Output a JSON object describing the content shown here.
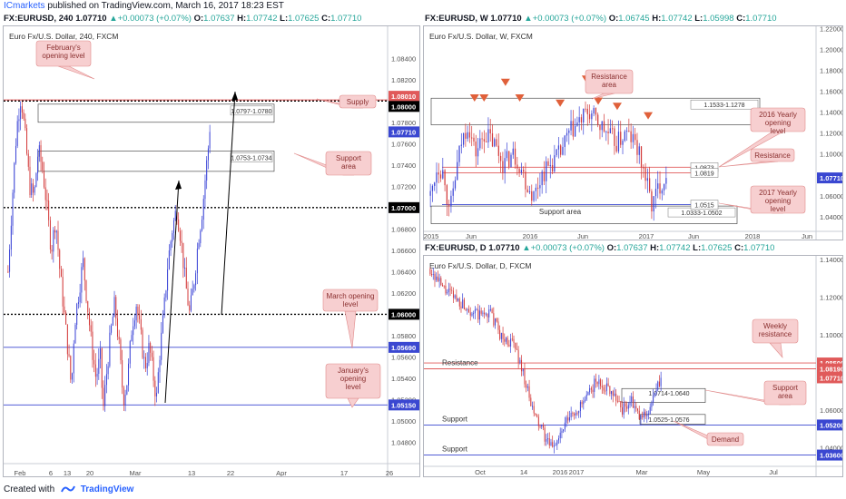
{
  "header": {
    "brand": "ICmarkets",
    "published": " published on TradingView.com, March 16, 2017 18:23 EST"
  },
  "footer": {
    "created_with": "Created with",
    "brand": "TradingView"
  },
  "panels": [
    {
      "id": "h4",
      "symbol": "FX:EURUSD, 240",
      "last": "1.07710",
      "change": "+0.00073 (+0.07%)",
      "open": "1.07637",
      "high": "1.07742",
      "low": "1.07625",
      "close": "1.07710",
      "title": "Euro Fx/U.S. Dollar, 240, FXCM"
    },
    {
      "id": "weekly",
      "symbol": "FX:EURUSD, W",
      "last": "1.07710",
      "change": "+0.00073 (+0.07%)",
      "open": "1.06745",
      "high": "1.07742",
      "low": "1.05998",
      "close": "1.07710",
      "title": "Euro Fx/U.S. Dollar, W, FXCM"
    },
    {
      "id": "daily",
      "symbol": "FX:EURUSD, D",
      "last": "1.07710",
      "change": "+0.00073 (+0.07%)",
      "open": "1.07637",
      "high": "1.07742",
      "low": "1.07625",
      "close": "1.07710",
      "title": "Euro Fx/U.S. Dollar, D, FXCM"
    }
  ],
  "colors": {
    "bull": "#3b44d6",
    "bear": "#d33a3a",
    "level_red": "#e05a5a",
    "level_blue": "#3a47d1",
    "callout": "#f7cfd0",
    "callout_border": "#e08a8a",
    "callout_text": "#8a2f2f",
    "axis_text": "#505050"
  },
  "chart_data": [
    {
      "panel": "h4",
      "type": "candlestick",
      "price_range": [
        1.046,
        1.087
      ],
      "y_tick_labels": [
        "1.04800",
        "1.05000",
        "1.05200",
        "1.05400",
        "1.05600",
        "1.05800",
        "1.06000",
        "1.06200",
        "1.06400",
        "1.06600",
        "1.06800",
        "1.07000",
        "1.07200",
        "1.07400",
        "1.07600",
        "1.07800",
        "1.08000",
        "1.08200",
        "1.08400"
      ],
      "x_tick_labels": [
        "Feb",
        "6",
        "13",
        "20",
        "Mar",
        "13",
        "22",
        "Apr",
        "17",
        "26"
      ],
      "zones": [
        {
          "label": "1.0797-1.0780",
          "high": 1.0797,
          "low": 1.078
        },
        {
          "label": "1.0753-1.0734",
          "high": 1.0753,
          "low": 1.0734
        }
      ],
      "levels": [
        {
          "value": 1.0801,
          "label": "1.08010",
          "color": "#e05a5a",
          "style": "solid"
        },
        {
          "value": 1.08,
          "label": "1.08000",
          "color": "#000000",
          "style": "dotted"
        },
        {
          "value": 1.07,
          "label": "1.07000",
          "color": "#000000",
          "style": "dotted"
        },
        {
          "value": 1.06,
          "label": "1.06000",
          "color": "#000000",
          "style": "dotted"
        },
        {
          "value": 1.0569,
          "label": "1.05690",
          "color": "#3a47d1",
          "style": "solid"
        },
        {
          "value": 1.0515,
          "label": "1.05150",
          "color": "#3a47d1",
          "style": "solid"
        }
      ],
      "last_price": {
        "value": 1.0771,
        "label": "1.07710"
      },
      "annotations": [
        {
          "text": "February's opening level"
        },
        {
          "text": "Supply"
        },
        {
          "text": "Support area"
        },
        {
          "text": "March opening level"
        },
        {
          "text": "January's opening level"
        }
      ],
      "path": [
        [
          0,
          1.064
        ],
        [
          3,
          1.071
        ],
        [
          6,
          1.0775
        ],
        [
          9,
          1.0805
        ],
        [
          12,
          1.0765
        ],
        [
          15,
          1.072
        ],
        [
          18,
          1.071
        ],
        [
          21,
          1.0755
        ],
        [
          24,
          1.0735
        ],
        [
          27,
          1.07
        ],
        [
          30,
          1.066
        ],
        [
          33,
          1.069
        ],
        [
          36,
          1.064
        ],
        [
          39,
          1.06
        ],
        [
          42,
          1.056
        ],
        [
          44,
          1.053
        ],
        [
          46,
          1.059
        ],
        [
          49,
          1.062
        ],
        [
          52,
          1.065
        ],
        [
          55,
          1.061
        ],
        [
          58,
          1.057
        ],
        [
          61,
          1.054
        ],
        [
          64,
          1.056
        ],
        [
          66,
          1.051
        ],
        [
          68,
          1.054
        ],
        [
          71,
          1.058
        ],
        [
          74,
          1.061
        ],
        [
          77,
          1.057
        ],
        [
          80,
          1.052
        ],
        [
          83,
          1.054
        ],
        [
          86,
          1.059
        ],
        [
          89,
          1.061
        ],
        [
          92,
          1.058
        ],
        [
          95,
          1.055
        ],
        [
          98,
          1.057
        ],
        [
          101,
          1.054
        ],
        [
          103,
          1.052
        ],
        [
          105,
          1.056
        ],
        [
          108,
          1.06
        ],
        [
          111,
          1.065
        ],
        [
          114,
          1.068
        ],
        [
          117,
          1.07
        ],
        [
          120,
          1.067
        ],
        [
          123,
          1.063
        ],
        [
          126,
          1.06
        ],
        [
          129,
          1.063
        ],
        [
          132,
          1.067
        ],
        [
          135,
          1.07
        ],
        [
          137,
          1.073
        ],
        [
          140,
          1.0771
        ]
      ]
    },
    {
      "panel": "weekly",
      "type": "candlestick",
      "price_range": [
        1.026,
        1.222
      ],
      "y_tick_labels": [
        "1.04000",
        "1.06000",
        "1.08000",
        "1.10000",
        "1.12000",
        "1.14000",
        "1.16000",
        "1.18000",
        "1.20000",
        "1.22000"
      ],
      "x_tick_labels": [
        "2015",
        "Jun",
        "2016",
        "Jun",
        "2017",
        "Jun",
        "2018",
        "Jun"
      ],
      "zones": [
        {
          "label": "1.1533-1.1278",
          "high": 1.1533,
          "low": 1.1278
        },
        {
          "label": "1.0333-1.0502",
          "high": 1.0502,
          "low": 1.0333
        }
      ],
      "levels": [
        {
          "value": 1.0873,
          "label": "1.0873",
          "color": "#e05a5a"
        },
        {
          "value": 1.0819,
          "label": "1.0819",
          "color": "#e05a5a"
        },
        {
          "value": 1.0515,
          "label": "1.0515",
          "color": "#3a47d1"
        }
      ],
      "last_price": {
        "value": 1.0771,
        "label": "1.07710"
      },
      "annotations": [
        {
          "text": "Resistance area"
        },
        {
          "text": "2016 Yearly opening level"
        },
        {
          "text": "Resistance"
        },
        {
          "text": "2017 Yearly opening level"
        },
        {
          "text": "Support area"
        }
      ],
      "markers": [
        [
          0.19,
          1.15
        ],
        [
          0.23,
          1.15
        ],
        [
          0.32,
          1.165
        ],
        [
          0.38,
          1.15
        ],
        [
          0.55,
          1.145
        ],
        [
          0.66,
          1.168
        ],
        [
          0.71,
          1.147
        ],
        [
          0.79,
          1.142
        ],
        [
          0.92,
          1.133
        ]
      ],
      "path": [
        [
          0.0,
          1.06
        ],
        [
          0.03,
          1.09
        ],
        [
          0.06,
          1.08
        ],
        [
          0.08,
          1.04
        ],
        [
          0.1,
          1.07
        ],
        [
          0.13,
          1.11
        ],
        [
          0.16,
          1.13
        ],
        [
          0.19,
          1.1
        ],
        [
          0.23,
          1.12
        ],
        [
          0.27,
          1.11
        ],
        [
          0.31,
          1.09
        ],
        [
          0.35,
          1.1
        ],
        [
          0.38,
          1.09
        ],
        [
          0.41,
          1.07
        ],
        [
          0.44,
          1.06
        ],
        [
          0.47,
          1.08
        ],
        [
          0.51,
          1.09
        ],
        [
          0.55,
          1.1
        ],
        [
          0.59,
          1.12
        ],
        [
          0.63,
          1.13
        ],
        [
          0.67,
          1.14
        ],
        [
          0.71,
          1.13
        ],
        [
          0.75,
          1.12
        ],
        [
          0.79,
          1.11
        ],
        [
          0.83,
          1.12
        ],
        [
          0.87,
          1.11
        ],
        [
          0.91,
          1.08
        ],
        [
          0.94,
          1.05
        ],
        [
          0.97,
          1.07
        ],
        [
          1.0,
          1.0771
        ]
      ]
    },
    {
      "panel": "daily",
      "type": "candlestick",
      "price_range": [
        1.03,
        1.142
      ],
      "y_tick_labels": [
        "1.04000",
        "1.06000",
        "1.08000",
        "1.10000",
        "1.12000",
        "1.14000"
      ],
      "x_tick_labels": [
        "Oct",
        "14",
        "2016",
        "2017",
        "Mar",
        "May",
        "Jul"
      ],
      "zones": [
        {
          "label": "1.0714-1.0640",
          "high": 1.0714,
          "low": 1.064
        },
        {
          "label": "1.0525-1.0576",
          "high": 1.0576,
          "low": 1.0525
        }
      ],
      "levels": [
        {
          "value": 1.085,
          "label": "1.08500",
          "color": "#e05a5a"
        },
        {
          "value": 1.0819,
          "label": "1.08190",
          "color": "#e05a5a"
        },
        {
          "value": 1.052,
          "label": "1.05200",
          "color": "#3a47d1"
        },
        {
          "value": 1.036,
          "label": "1.03600",
          "color": "#3a47d1"
        }
      ],
      "last_price": {
        "value": 1.0771,
        "label": "1.07710"
      },
      "annotations": [
        {
          "text": "Resistance"
        },
        {
          "text": "Weekly resistance"
        },
        {
          "text": "Support area"
        },
        {
          "text": "Support"
        },
        {
          "text": "Demand"
        },
        {
          "text": "Support"
        }
      ],
      "path": [
        [
          0.0,
          1.135
        ],
        [
          0.04,
          1.125
        ],
        [
          0.08,
          1.12
        ],
        [
          0.12,
          1.115
        ],
        [
          0.16,
          1.11
        ],
        [
          0.2,
          1.112
        ],
        [
          0.24,
          1.098
        ],
        [
          0.28,
          1.095
        ],
        [
          0.31,
          1.08
        ],
        [
          0.34,
          1.06
        ],
        [
          0.37,
          1.05
        ],
        [
          0.4,
          1.04
        ],
        [
          0.43,
          1.045
        ],
        [
          0.46,
          1.055
        ],
        [
          0.49,
          1.06
        ],
        [
          0.52,
          1.065
        ],
        [
          0.55,
          1.075
        ],
        [
          0.58,
          1.073
        ],
        [
          0.61,
          1.07
        ],
        [
          0.64,
          1.06
        ],
        [
          0.67,
          1.065
        ],
        [
          0.7,
          1.055
        ],
        [
          0.73,
          1.06
        ],
        [
          0.75,
          1.068
        ],
        [
          0.77,
          1.0771
        ]
      ]
    }
  ]
}
